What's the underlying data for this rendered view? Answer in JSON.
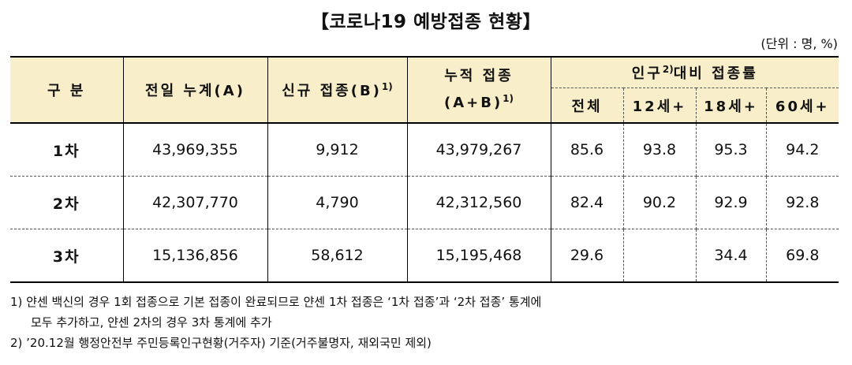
{
  "title": "【코로나19 예방접종 현황】",
  "unit": "(단위 : 명, %)",
  "table": {
    "headers": {
      "category": "구 분",
      "prev_cumulative": "전일 누계(A)",
      "new_vaccination": "신규 접종(B)",
      "new_vaccination_sup": "1)",
      "cumulative_line1": "누적 접종",
      "cumulative_line2": "(A+B)",
      "cumulative_sup": "1)",
      "rate_group_before": "인구",
      "rate_group_sup": "2)",
      "rate_group_after": "대비 접종률",
      "rate_total": "전체",
      "rate_12": "12세+",
      "rate_18": "18세+",
      "rate_60": "60세+"
    },
    "rows": [
      {
        "label": "1차",
        "prev": "43,969,355",
        "new": "9,912",
        "cumulative": "43,979,267",
        "total": "85.6",
        "age12": "93.8",
        "age18": "95.3",
        "age60": "94.2"
      },
      {
        "label": "2차",
        "prev": "42,307,770",
        "new": "4,790",
        "cumulative": "42,312,560",
        "total": "82.4",
        "age12": "90.2",
        "age18": "92.9",
        "age60": "92.8"
      },
      {
        "label": "3차",
        "prev": "15,136,856",
        "new": "58,612",
        "cumulative": "15,195,468",
        "total": "29.6",
        "age12": "",
        "age18": "34.4",
        "age60": "69.8"
      }
    ]
  },
  "notes": {
    "note1_line1": "1) 얀센 백신의 경우 1회 접종으로 기본 접종이 완료되므로 얀센 1차 접종은 ‘1차 접종’과 ‘2차 접종’ 통계에",
    "note1_line2": "모두 추가하고, 얀센 2차의 경우 3차 통계에 추가",
    "note2": "2) ’20.12월 행정안전부 주민등록인구현황(거주자) 기준(거주불명자, 재외국민 제외)"
  }
}
